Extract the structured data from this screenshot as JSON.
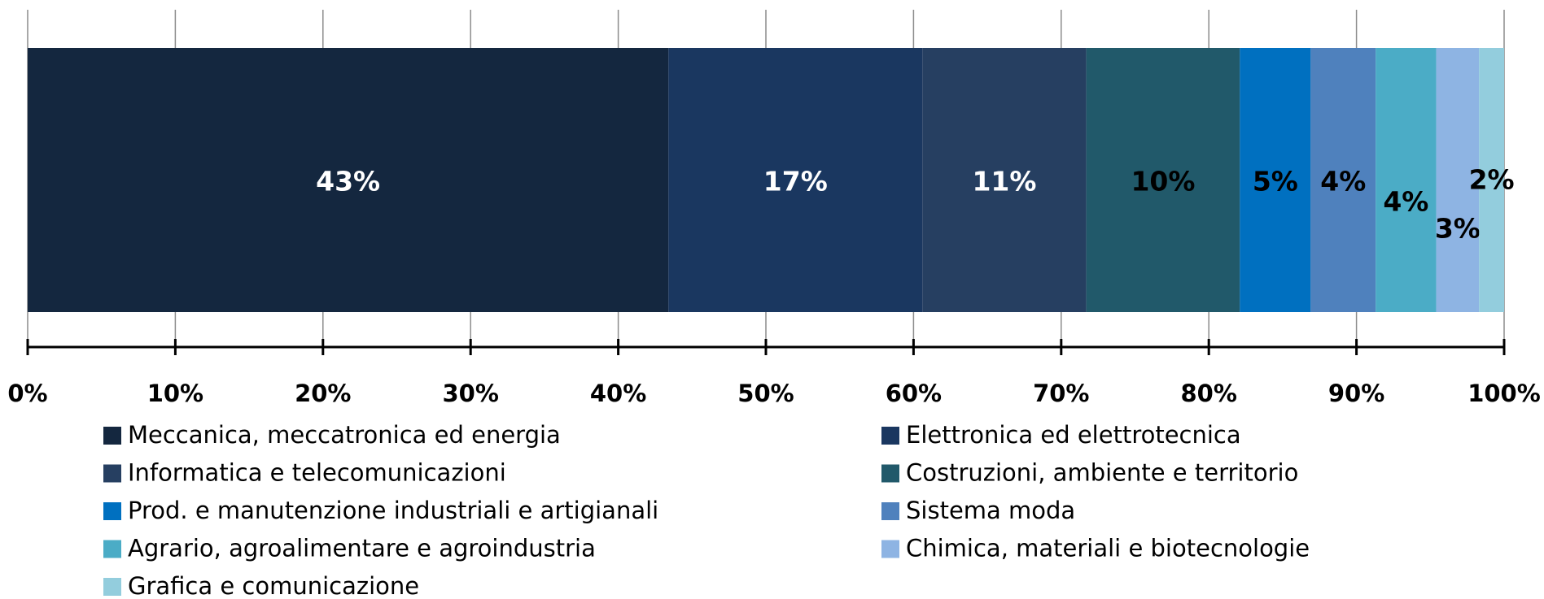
{
  "chart_data": {
    "type": "stacked_bar_horizontal",
    "categories": [
      null
    ],
    "series": [
      {
        "name": "Meccanica, meccatronica ed energia",
        "color": "#14273f",
        "values": [
          43.4
        ],
        "value_labels": [
          "43%"
        ]
      },
      {
        "name": "Elettronica ed elettrotecnica",
        "color": "#1a3760",
        "values": [
          17.2
        ],
        "value_labels": [
          "17%"
        ]
      },
      {
        "name": "Informatica e telecomunicazioni",
        "color": "#263f61",
        "values": [
          11.1
        ],
        "value_labels": [
          "11%"
        ]
      },
      {
        "name": "Costruzioni, ambiente e territorio",
        "color": "#21596a",
        "values": [
          10.4
        ],
        "value_labels": [
          "10%"
        ]
      },
      {
        "name": "Prod. e manutenzione industriali e artigianali",
        "color": "#0070c0",
        "values": [
          4.8
        ],
        "value_labels": [
          "5%"
        ]
      },
      {
        "name": "Sistema moda",
        "color": "#4f81bd",
        "values": [
          4.4
        ],
        "value_labels": [
          "4%"
        ]
      },
      {
        "name": "Agrario, agroalimentare e agroindustria",
        "color": "#4bacc6",
        "values": [
          4.1
        ],
        "value_labels": [
          "4%"
        ]
      },
      {
        "name": "Chimica, materiali e biotecnologie",
        "color": "#8eb4e3",
        "values": [
          2.9
        ],
        "value_labels": [
          "3%"
        ]
      },
      {
        "name": "Grafica e comunicazione",
        "color": "#93cddd",
        "values": [
          1.7
        ],
        "value_labels": [
          "2%"
        ]
      }
    ],
    "xlim": [
      0,
      100
    ],
    "xticks": [
      {
        "value": 0,
        "label": "0%"
      },
      {
        "value": 10,
        "label": "10%"
      },
      {
        "value": 20,
        "label": "20%"
      },
      {
        "value": 30,
        "label": "30%"
      },
      {
        "value": 40,
        "label": "40%"
      },
      {
        "value": 50,
        "label": "50%"
      },
      {
        "value": 60,
        "label": "60%"
      },
      {
        "value": 70,
        "label": "70%"
      },
      {
        "value": 80,
        "label": "80%"
      },
      {
        "value": 90,
        "label": "90%"
      },
      {
        "value": 100,
        "label": "100%"
      }
    ],
    "grid": true,
    "legend": "bottom"
  }
}
